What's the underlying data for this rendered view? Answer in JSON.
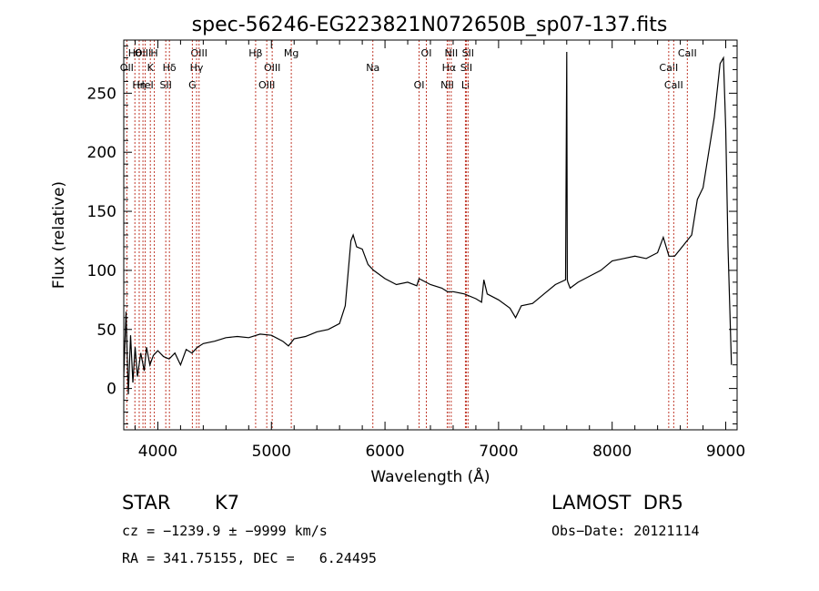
{
  "chart_data": {
    "type": "line",
    "title": "spec-56246-EG223821N072650B_sp07-137.fits",
    "xlabel": "Wavelength (Å)",
    "ylabel": "Flux (relative)",
    "xlim": [
      3700,
      9100
    ],
    "ylim": [
      -35,
      295
    ],
    "xticks": [
      4000,
      5000,
      6000,
      7000,
      8000,
      9000
    ],
    "yticks": [
      0,
      50,
      100,
      150,
      200,
      250
    ],
    "grid": false,
    "series": [
      {
        "x": [
          3700,
          3720,
          3740,
          3760,
          3780,
          3800,
          3820,
          3850,
          3880,
          3900,
          3930,
          3960,
          4000,
          4050,
          4100,
          4150,
          4200,
          4250,
          4300,
          4350,
          4400,
          4500,
          4600,
          4700,
          4800,
          4900,
          5000,
          5100,
          5150,
          5200,
          5300,
          5400,
          5500,
          5600,
          5650,
          5700,
          5720,
          5750,
          5800,
          5850,
          5900,
          6000,
          6100,
          6200,
          6280,
          6300,
          6400,
          6500,
          6550,
          6600,
          6700,
          6800,
          6850,
          6870,
          6900,
          7000,
          7100,
          7150,
          7200,
          7300,
          7400,
          7500,
          7590,
          7600,
          7605,
          7610,
          7630,
          7700,
          7800,
          7900,
          8000,
          8100,
          8200,
          8300,
          8400,
          8450,
          8500,
          8550,
          8600,
          8700,
          8750,
          8800,
          8850,
          8900,
          8950,
          8980,
          9000,
          9020,
          9050
        ],
        "y": [
          10,
          65,
          -5,
          45,
          5,
          35,
          10,
          30,
          15,
          35,
          20,
          28,
          32,
          27,
          25,
          30,
          20,
          33,
          30,
          35,
          38,
          40,
          43,
          44,
          43,
          46,
          45,
          40,
          36,
          42,
          44,
          48,
          50,
          55,
          70,
          125,
          130,
          120,
          118,
          105,
          100,
          93,
          88,
          90,
          87,
          93,
          88,
          85,
          82,
          82,
          80,
          76,
          73,
          92,
          80,
          75,
          68,
          60,
          70,
          72,
          80,
          88,
          92,
          285,
          92,
          90,
          85,
          90,
          95,
          100,
          108,
          110,
          112,
          110,
          115,
          128,
          112,
          112,
          118,
          130,
          160,
          170,
          200,
          230,
          275,
          280,
          220,
          120,
          20
        ]
      }
    ],
    "lines": [
      {
        "label": "Hθ",
        "wavelength": 3798
      },
      {
        "label": "OII",
        "wavelength": 3727
      },
      {
        "label": "Hη",
        "wavelength": 3836
      },
      {
        "label": "OIII",
        "wavelength": 3869
      },
      {
        "label": "K",
        "wavelength": 3934
      },
      {
        "label": "HeI",
        "wavelength": 3889
      },
      {
        "label": "H",
        "wavelength": 3969
      },
      {
        "label": "Hδ",
        "wavelength": 4102
      },
      {
        "label": "SII",
        "wavelength": 4070
      },
      {
        "label": "OIII",
        "wavelength": 4363
      },
      {
        "label": "Hγ",
        "wavelength": 4341
      },
      {
        "label": "G",
        "wavelength": 4304
      },
      {
        "label": "Hβ",
        "wavelength": 4861
      },
      {
        "label": "OIII",
        "wavelength": 5007
      },
      {
        "label": "OIII",
        "wavelength": 4959
      },
      {
        "label": "Mg",
        "wavelength": 5175
      },
      {
        "label": "Na",
        "wavelength": 5893
      },
      {
        "label": "OI",
        "wavelength": 6300
      },
      {
        "label": "OI",
        "wavelength": 6364
      },
      {
        "label": "Hα",
        "wavelength": 6563
      },
      {
        "label": "NII",
        "wavelength": 6548
      },
      {
        "label": "NII",
        "wavelength": 6583
      },
      {
        "label": "SII",
        "wavelength": 6716
      },
      {
        "label": "Li",
        "wavelength": 6708
      },
      {
        "label": "SII",
        "wavelength": 6731
      },
      {
        "label": "CaII",
        "wavelength": 8498
      },
      {
        "label": "CaII",
        "wavelength": 8542
      },
      {
        "label": "CaII",
        "wavelength": 8662
      }
    ]
  },
  "info": {
    "class": "STAR",
    "subclass": "K7",
    "survey": "LAMOST  DR5",
    "cz": "cz = −1239.9 ± −9999 km/s",
    "obs_date": "Obs−Date: 20121114",
    "radec": "RA = 341.75155, DEC =   6.24495"
  }
}
